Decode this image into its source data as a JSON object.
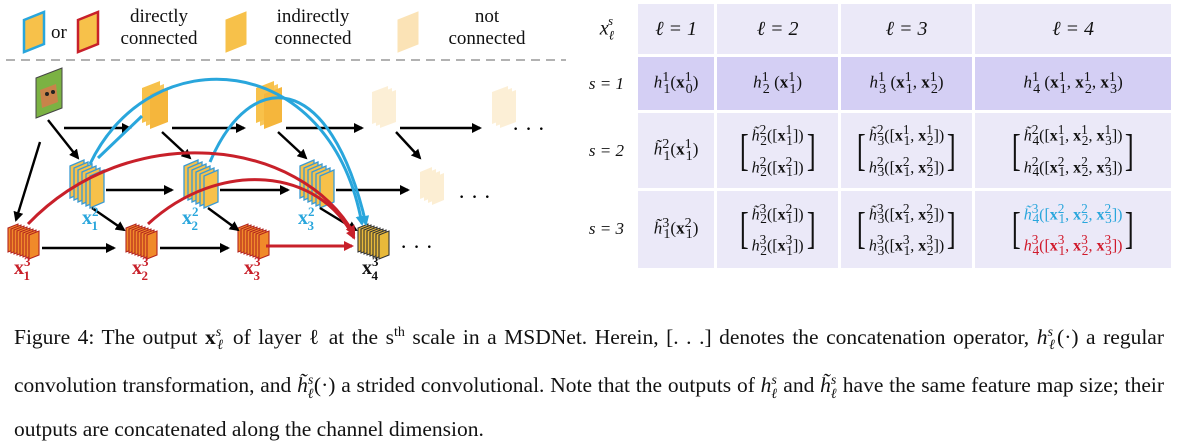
{
  "legend": {
    "or": "or",
    "directly": "directly\nconnected",
    "indirectly": "indirectly\nconnected",
    "not": "not\nconnected"
  },
  "diagram": {
    "labels": {
      "x1_2": "x",
      "x2_2": "x",
      "x3_2": "x",
      "x1_3": "x",
      "x2_3": "x",
      "x3_3": "x",
      "x4_3": "x"
    },
    "ellipsis": "· · ·",
    "colors": {
      "blue": "#29a6dc",
      "red": "#c8202a",
      "yellow": "#f7c14a",
      "faded": "#fbe3b6",
      "teal": "#3b9ad2",
      "orange": "#e8661c"
    }
  },
  "table": {
    "corner": "x",
    "headers": [
      "ℓ = 1",
      "ℓ = 2",
      "ℓ = 3",
      "ℓ = 4"
    ],
    "row_labels": [
      "s = 1",
      "s = 2",
      "s = 3"
    ]
  },
  "caption": {
    "line1": "Figure 4: The output",
    "text": "of layer ℓ at the s",
    "th": "th",
    "rest1": " scale in a MSDNet.  Herein, [. . .] denotes the concatenation operator, ",
    "rest2": " a regular convolution transformation, and ",
    "rest3": " a strided convolutional. Note that the outputs of ",
    "rest4": " and ",
    "rest5": " have the same feature map size; their outputs are concatenated along the channel dimension."
  }
}
